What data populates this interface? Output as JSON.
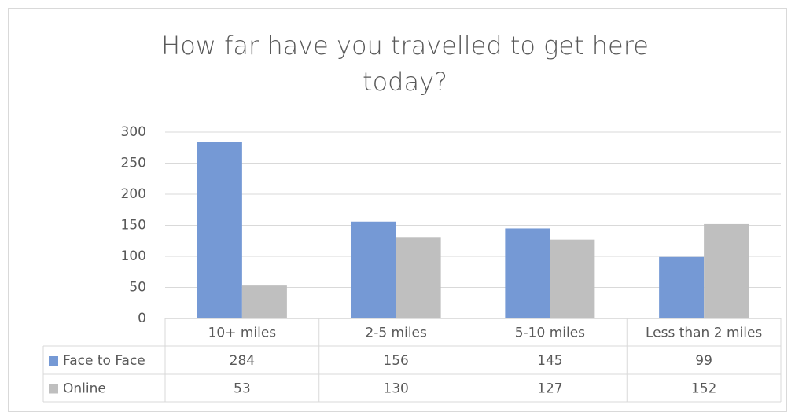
{
  "chart_data": {
    "type": "bar",
    "title": "How far have you travelled to get here today?",
    "categories": [
      "10+ miles",
      "2-5 miles",
      "5-10 miles",
      "Less than 2 miles"
    ],
    "series": [
      {
        "name": "Face to Face",
        "color": "#7599d5",
        "values": [
          284,
          156,
          145,
          99
        ]
      },
      {
        "name": "Online",
        "color": "#bfbfbf",
        "values": [
          53,
          130,
          127,
          152
        ]
      }
    ],
    "ylim": [
      0,
      300
    ],
    "yticks": [
      0,
      50,
      100,
      150,
      200,
      250,
      300
    ],
    "grid": true,
    "data_table": true
  }
}
